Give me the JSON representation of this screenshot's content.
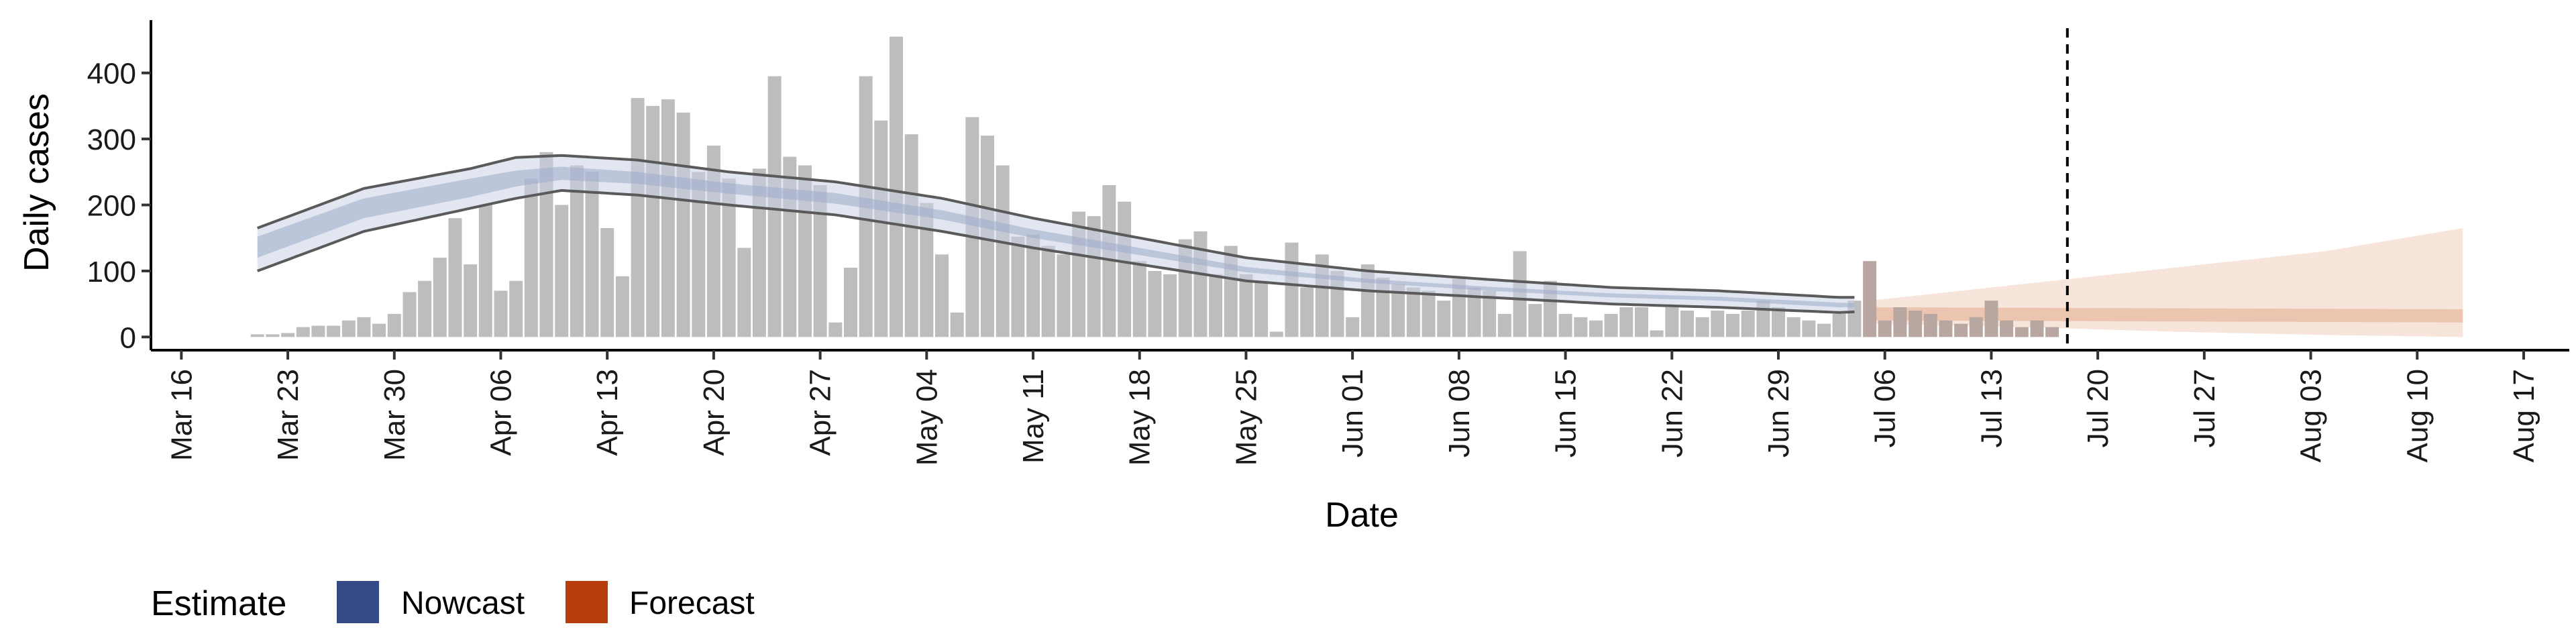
{
  "chart_data": {
    "type": "bar",
    "xlabel": "Date",
    "ylabel": "Daily cases",
    "x_range": [
      "2020-03-14",
      "2020-08-20"
    ],
    "y_range": [
      -20,
      480
    ],
    "y_ticks": [
      0,
      100,
      200,
      300,
      400
    ],
    "x_ticks": [
      {
        "date": "2020-03-16",
        "label": "Mar 16"
      },
      {
        "date": "2020-03-23",
        "label": "Mar 23"
      },
      {
        "date": "2020-03-30",
        "label": "Mar 30"
      },
      {
        "date": "2020-04-06",
        "label": "Apr 06"
      },
      {
        "date": "2020-04-13",
        "label": "Apr 13"
      },
      {
        "date": "2020-04-20",
        "label": "Apr 20"
      },
      {
        "date": "2020-04-27",
        "label": "Apr 27"
      },
      {
        "date": "2020-05-04",
        "label": "May 04"
      },
      {
        "date": "2020-05-11",
        "label": "May 11"
      },
      {
        "date": "2020-05-18",
        "label": "May 18"
      },
      {
        "date": "2020-05-25",
        "label": "May 25"
      },
      {
        "date": "2020-06-01",
        "label": "Jun 01"
      },
      {
        "date": "2020-06-08",
        "label": "Jun 08"
      },
      {
        "date": "2020-06-15",
        "label": "Jun 15"
      },
      {
        "date": "2020-06-22",
        "label": "Jun 22"
      },
      {
        "date": "2020-06-29",
        "label": "Jun 29"
      },
      {
        "date": "2020-07-06",
        "label": "Jul 06"
      },
      {
        "date": "2020-07-13",
        "label": "Jul 13"
      },
      {
        "date": "2020-07-20",
        "label": "Jul 20"
      },
      {
        "date": "2020-07-27",
        "label": "Jul 27"
      },
      {
        "date": "2020-08-03",
        "label": "Aug 03"
      },
      {
        "date": "2020-08-10",
        "label": "Aug 10"
      },
      {
        "date": "2020-08-17",
        "label": "Aug 17"
      }
    ],
    "bars": {
      "start_date": "2020-03-21",
      "color": "#bdbdbd",
      "values": [
        4,
        4,
        6,
        15,
        17,
        17,
        25,
        30,
        20,
        35,
        68,
        85,
        120,
        180,
        110,
        200,
        70,
        85,
        240,
        280,
        200,
        260,
        250,
        165,
        92,
        362,
        350,
        360,
        340,
        250,
        290,
        240,
        135,
        255,
        395,
        273,
        260,
        230,
        22,
        105,
        395,
        328,
        455,
        307,
        203,
        125,
        37,
        333,
        305,
        260,
        152,
        155,
        138,
        125,
        190,
        183,
        230,
        205,
        115,
        100,
        95,
        148,
        160,
        95,
        138,
        95,
        85,
        8,
        143,
        75,
        125,
        100,
        30,
        110,
        90,
        80,
        75,
        70,
        55,
        88,
        75,
        70,
        35,
        130,
        50,
        85,
        35,
        30,
        25,
        35,
        45,
        45,
        10,
        45,
        40,
        30,
        40,
        35,
        40,
        55,
        45,
        30,
        25,
        20,
        35,
        55,
        115,
        25,
        45,
        40,
        35,
        25,
        20,
        30,
        55,
        25,
        15,
        25,
        15
      ],
      "forecast_start": "2020-07-05"
    },
    "series": [
      {
        "name": "Nowcast",
        "color": "#3a4d8f",
        "x_start": "2020-03-21",
        "x_end": "2020-07-04",
        "outer_upper": [
          [
            0,
            165
          ],
          [
            7,
            225
          ],
          [
            14,
            255
          ],
          [
            17,
            272
          ],
          [
            20,
            275
          ],
          [
            25,
            268
          ],
          [
            31,
            250
          ],
          [
            38,
            235
          ],
          [
            45,
            210
          ],
          [
            51,
            180
          ],
          [
            58,
            150
          ],
          [
            65,
            120
          ],
          [
            73,
            100
          ],
          [
            81,
            87
          ],
          [
            89,
            75
          ],
          [
            96,
            70
          ],
          [
            104,
            60
          ],
          [
            111,
            55
          ],
          [
            118,
            50
          ],
          [
            126,
            48
          ],
          [
            133,
            47
          ],
          [
            140,
            47
          ],
          [
            105,
            60
          ]
        ],
        "outer_lower": [
          [
            0,
            100
          ],
          [
            7,
            160
          ],
          [
            14,
            195
          ],
          [
            17,
            210
          ],
          [
            20,
            222
          ],
          [
            25,
            215
          ],
          [
            31,
            200
          ],
          [
            38,
            185
          ],
          [
            45,
            160
          ],
          [
            51,
            135
          ],
          [
            58,
            110
          ],
          [
            65,
            85
          ],
          [
            73,
            70
          ],
          [
            81,
            60
          ],
          [
            89,
            50
          ],
          [
            96,
            45
          ],
          [
            104,
            37
          ],
          [
            111,
            32
          ],
          [
            118,
            28
          ],
          [
            126,
            25
          ],
          [
            133,
            24
          ],
          [
            140,
            24
          ],
          [
            105,
            38
          ]
        ],
        "mid_upper": [
          [
            0,
            152
          ],
          [
            7,
            210
          ],
          [
            14,
            240
          ],
          [
            17,
            252
          ],
          [
            20,
            258
          ],
          [
            25,
            250
          ],
          [
            31,
            233
          ],
          [
            38,
            218
          ],
          [
            45,
            192
          ],
          [
            51,
            163
          ],
          [
            58,
            135
          ],
          [
            65,
            106
          ],
          [
            73,
            88
          ],
          [
            81,
            76
          ],
          [
            89,
            66
          ],
          [
            96,
            61
          ],
          [
            104,
            52
          ],
          [
            111,
            47
          ],
          [
            118,
            42
          ],
          [
            126,
            39
          ],
          [
            133,
            37
          ],
          [
            140,
            37
          ],
          [
            105,
            51
          ]
        ],
        "mid_lower": [
          [
            0,
            120
          ],
          [
            7,
            180
          ],
          [
            14,
            212
          ],
          [
            17,
            228
          ],
          [
            20,
            238
          ],
          [
            25,
            232
          ],
          [
            31,
            217
          ],
          [
            38,
            202
          ],
          [
            45,
            178
          ],
          [
            51,
            150
          ],
          [
            58,
            124
          ],
          [
            65,
            98
          ],
          [
            73,
            82
          ],
          [
            81,
            70
          ],
          [
            89,
            60
          ],
          [
            96,
            55
          ],
          [
            104,
            45
          ],
          [
            111,
            40
          ],
          [
            118,
            36
          ],
          [
            126,
            33
          ],
          [
            133,
            32
          ],
          [
            140,
            32
          ],
          [
            105,
            45
          ]
        ]
      },
      {
        "name": "Forecast",
        "color": "#b34010",
        "x_start": "2020-07-05",
        "x_end": "2020-08-13",
        "outer_upper": [
          [
            0,
            55
          ],
          [
            10,
            80
          ],
          [
            20,
            105
          ],
          [
            30,
            130
          ],
          [
            39,
            165
          ]
        ],
        "outer_lower": [
          [
            0,
            20
          ],
          [
            10,
            15
          ],
          [
            20,
            8
          ],
          [
            30,
            3
          ],
          [
            39,
            0
          ]
        ],
        "inner_upper": [
          [
            0,
            45
          ],
          [
            39,
            42
          ]
        ],
        "inner_lower": [
          [
            0,
            25
          ],
          [
            39,
            22
          ]
        ]
      }
    ],
    "vline": {
      "date": "2020-07-18",
      "style": "dashed"
    },
    "legend": {
      "title": "Estimate",
      "position": "bottom-left",
      "items": [
        {
          "label": "Nowcast",
          "color": "#344a86"
        },
        {
          "label": "Forecast",
          "color": "#b73d0b"
        }
      ]
    },
    "grid": false
  }
}
